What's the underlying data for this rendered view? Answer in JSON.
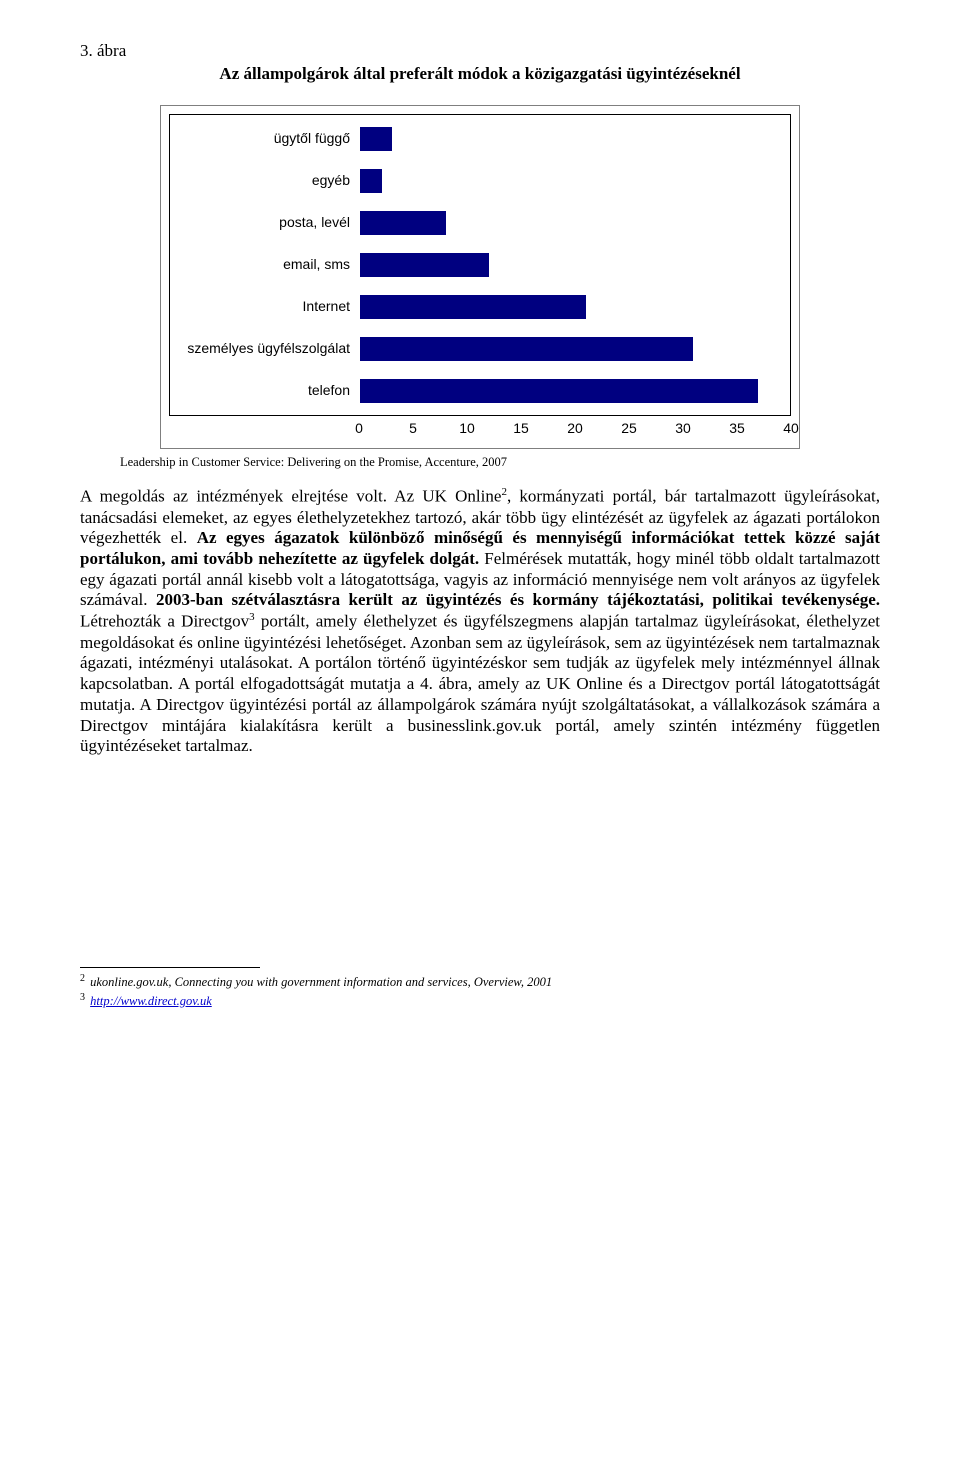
{
  "figure": {
    "label": "3. ábra",
    "title": "Az állampolgárok által preferált módok a közigazgatási ügyintézéseknél"
  },
  "chart": {
    "type": "bar-horizontal",
    "categories": [
      "ügytől függő",
      "egyéb",
      "posta, levél",
      "email, sms",
      "Internet",
      "személyes ügyfélszolgálat",
      "telefon"
    ],
    "values": [
      3,
      2,
      8,
      12,
      21,
      31,
      37
    ],
    "bar_color": "#000080",
    "x_max": 40,
    "ticks": [
      0,
      5,
      10,
      15,
      20,
      25,
      30,
      35,
      40
    ],
    "plot_border_color": "#000000",
    "outer_border_color": "#7f7f7f",
    "background_color": "#ffffff",
    "label_fontsize": 14,
    "label_fontfamily": "Arial"
  },
  "source": "Leadership in Customer Service: Delivering on the Promise, Accenture, 2007",
  "body": {
    "p1_a": "A megoldás az intézmények elrejtése volt. Az UK Online",
    "sup1": "2",
    "p1_b": ", kormányzati portál, bár tartalmazott ügyleírásokat, tanácsadási elemeket, az egyes élethelyzetekhez tartozó, akár több ügy elintézését az ügyfelek az ágazati portálokon végezhették el. ",
    "bold1": "Az egyes ágazatok különböző minőségű és mennyiségű információkat tettek közzé saját portálukon, ami tovább nehezítette az ügyfelek dolgát.",
    "p1_c": " Felmérések mutatták, hogy minél több oldalt tartalmazott egy ágazati portál annál kisebb volt a látogatottsága, vagyis az információ mennyisége nem volt arányos az ügyfelek számával. ",
    "bold2": "2003-ban szétválasztásra került az ügyintézés és kormány tájékoztatási, politikai tevékenysége.",
    "p1_d": " Létrehozták a Directgov",
    "sup2": "3",
    "p1_e": " portált, amely élethelyzet és ügyfélszegmens alapján tartalmaz ügyleírásokat, élethelyzet megoldásokat és online ügyintézési lehetőséget. Azonban sem az ügyleírások, sem az ügyintézések nem tartalmaznak ágazati, intézményi utalásokat. A portálon történő ügyintézéskor sem tudják az ügyfelek mely intézménnyel állnak kapcsolatban. A portál elfogadottságát mutatja a 4. ábra, amely az UK Online és a Directgov portál látogatottságát mutatja. A Directgov ügyintézési portál az állampolgárok számára nyújt szolgáltatásokat, a vállalkozások számára a Directgov mintájára kialakításra került a businesslink.gov.uk portál, amely szintén intézmény független ügyintézéseket tartalmaz."
  },
  "footnotes": {
    "n1_num": "2",
    "n1_text": " ukonline.gov.uk, Connecting you with government information and services, Overview, 2001",
    "n2_num": "3",
    "n2_text_prefix": " ",
    "n2_link": "http://www.direct.gov.uk"
  }
}
